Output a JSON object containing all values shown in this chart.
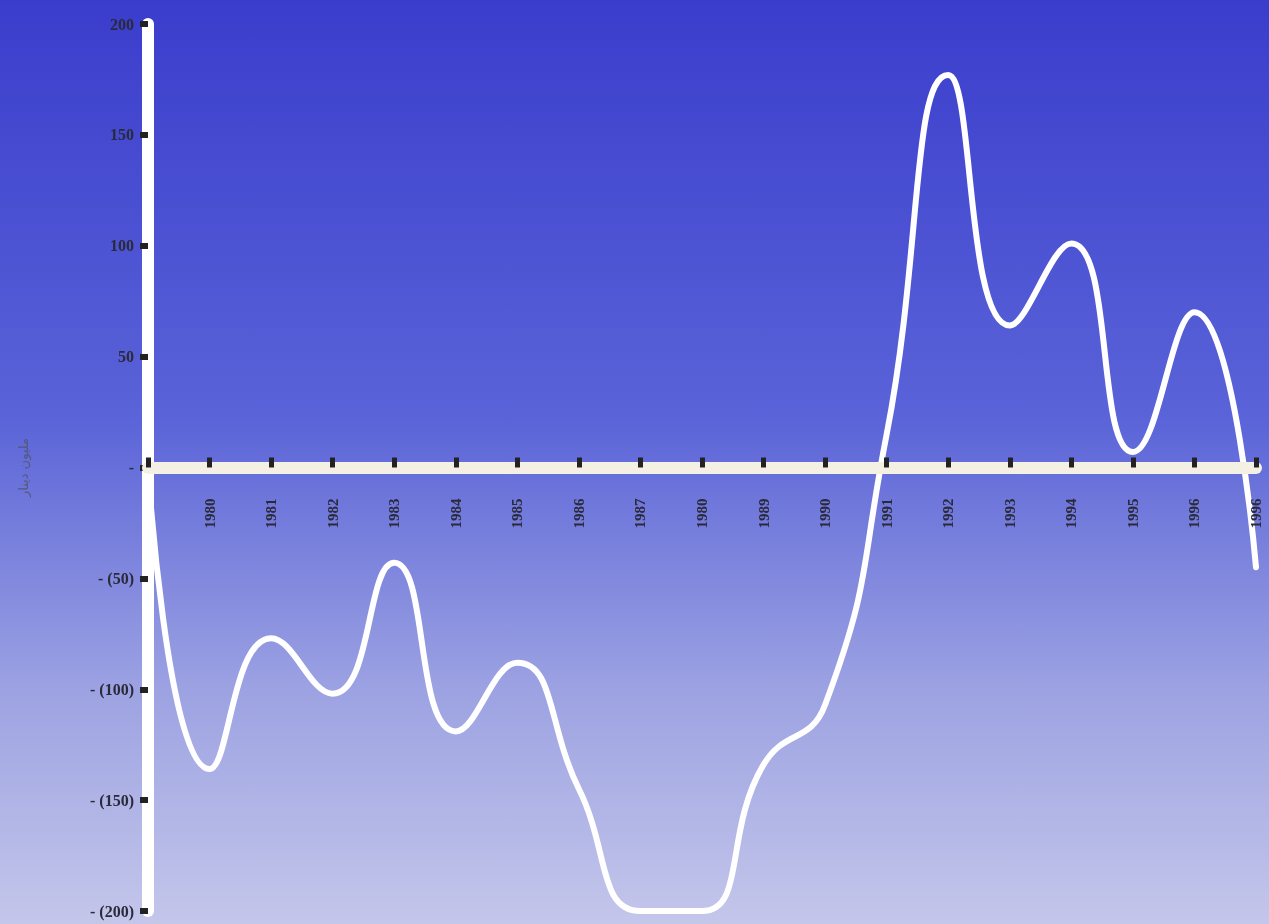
{
  "chart_data": {
    "type": "line",
    "ylabel": "مليون دينار",
    "categories": [
      null,
      "1980",
      "1981",
      "1982",
      "1983",
      "1984",
      "1985",
      "1986",
      "1987",
      "1980",
      "1989",
      "1990",
      "1991",
      "1992",
      "1993",
      "1994",
      "1995",
      "1996",
      "1996"
    ],
    "series": [
      {
        "color": "#ffffff",
        "values": [
          0,
          -136,
          -77,
          -102,
          -43,
          -119,
          -88,
          -145,
          -200,
          -200,
          -134,
          -107,
          15,
          177,
          64,
          101,
          7,
          70,
          -45
        ]
      }
    ],
    "ylim": [
      -200,
      200
    ],
    "yticks": [
      {
        "value": -200,
        "label": "- (200)"
      },
      {
        "value": -150,
        "label": "- (150)"
      },
      {
        "value": -100,
        "label": "- (100)"
      },
      {
        "value": -50,
        "label": "- (50)"
      },
      {
        "value": 0,
        "label": "-"
      },
      50,
      100,
      150,
      200
    ],
    "grid": false,
    "marker": "none",
    "line_style": "solid"
  }
}
